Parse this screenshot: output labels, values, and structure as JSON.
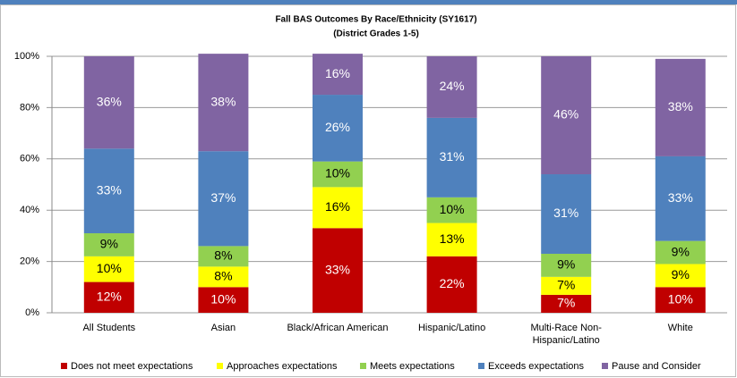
{
  "chart_data": {
    "type": "stacked_bar",
    "title": "Fall BAS Outcomes  By Race/Ethnicity (SY1617)",
    "subtitle": "(District Grades 1-5)",
    "categories": [
      "All Students",
      "Asian",
      "Black/African American",
      "Hispanic/Latino",
      "Multi-Race Non-Hispanic/Latino",
      "White"
    ],
    "series": [
      {
        "name": "Does not meet expectations",
        "color": "#c00000",
        "values": [
          12,
          10,
          33,
          22,
          7,
          10
        ],
        "value_labels": [
          "12%",
          "10%",
          "33%",
          "22%",
          "7%",
          "10%"
        ]
      },
      {
        "name": "Approaches expectations",
        "color": "#ffff00",
        "values": [
          10,
          8,
          16,
          13,
          7,
          9
        ],
        "value_labels": [
          "10%",
          "8%",
          "16%",
          "13%",
          "7%",
          "9%"
        ]
      },
      {
        "name": "Meets expectations",
        "color": "#92d050",
        "values": [
          9,
          8,
          10,
          10,
          9,
          9
        ],
        "value_labels": [
          "9%",
          "8%",
          "10%",
          "10%",
          "9%",
          "9%"
        ]
      },
      {
        "name": "Exceeds expectations",
        "color": "#4f81bd",
        "values": [
          33,
          37,
          26,
          31,
          31,
          33
        ],
        "value_labels": [
          "33%",
          "37%",
          "26%",
          "31%",
          "31%",
          "33%"
        ]
      },
      {
        "name": "Pause and Consider",
        "color": "#8064a2",
        "values": [
          36,
          38,
          16,
          24,
          46,
          38
        ],
        "value_labels": [
          "36%",
          "38%",
          "16%",
          "24%",
          "46%",
          "38%"
        ]
      }
    ],
    "ylim": [
      0,
      100
    ],
    "yticks": [
      {
        "value": 0,
        "label": "0%"
      },
      {
        "value": 20,
        "label": "20%"
      },
      {
        "value": 40,
        "label": "40%"
      },
      {
        "value": 60,
        "label": "60%"
      },
      {
        "value": 80,
        "label": "80%"
      },
      {
        "value": 100,
        "label": "100%"
      }
    ],
    "grid": true,
    "legend": "bottom"
  }
}
